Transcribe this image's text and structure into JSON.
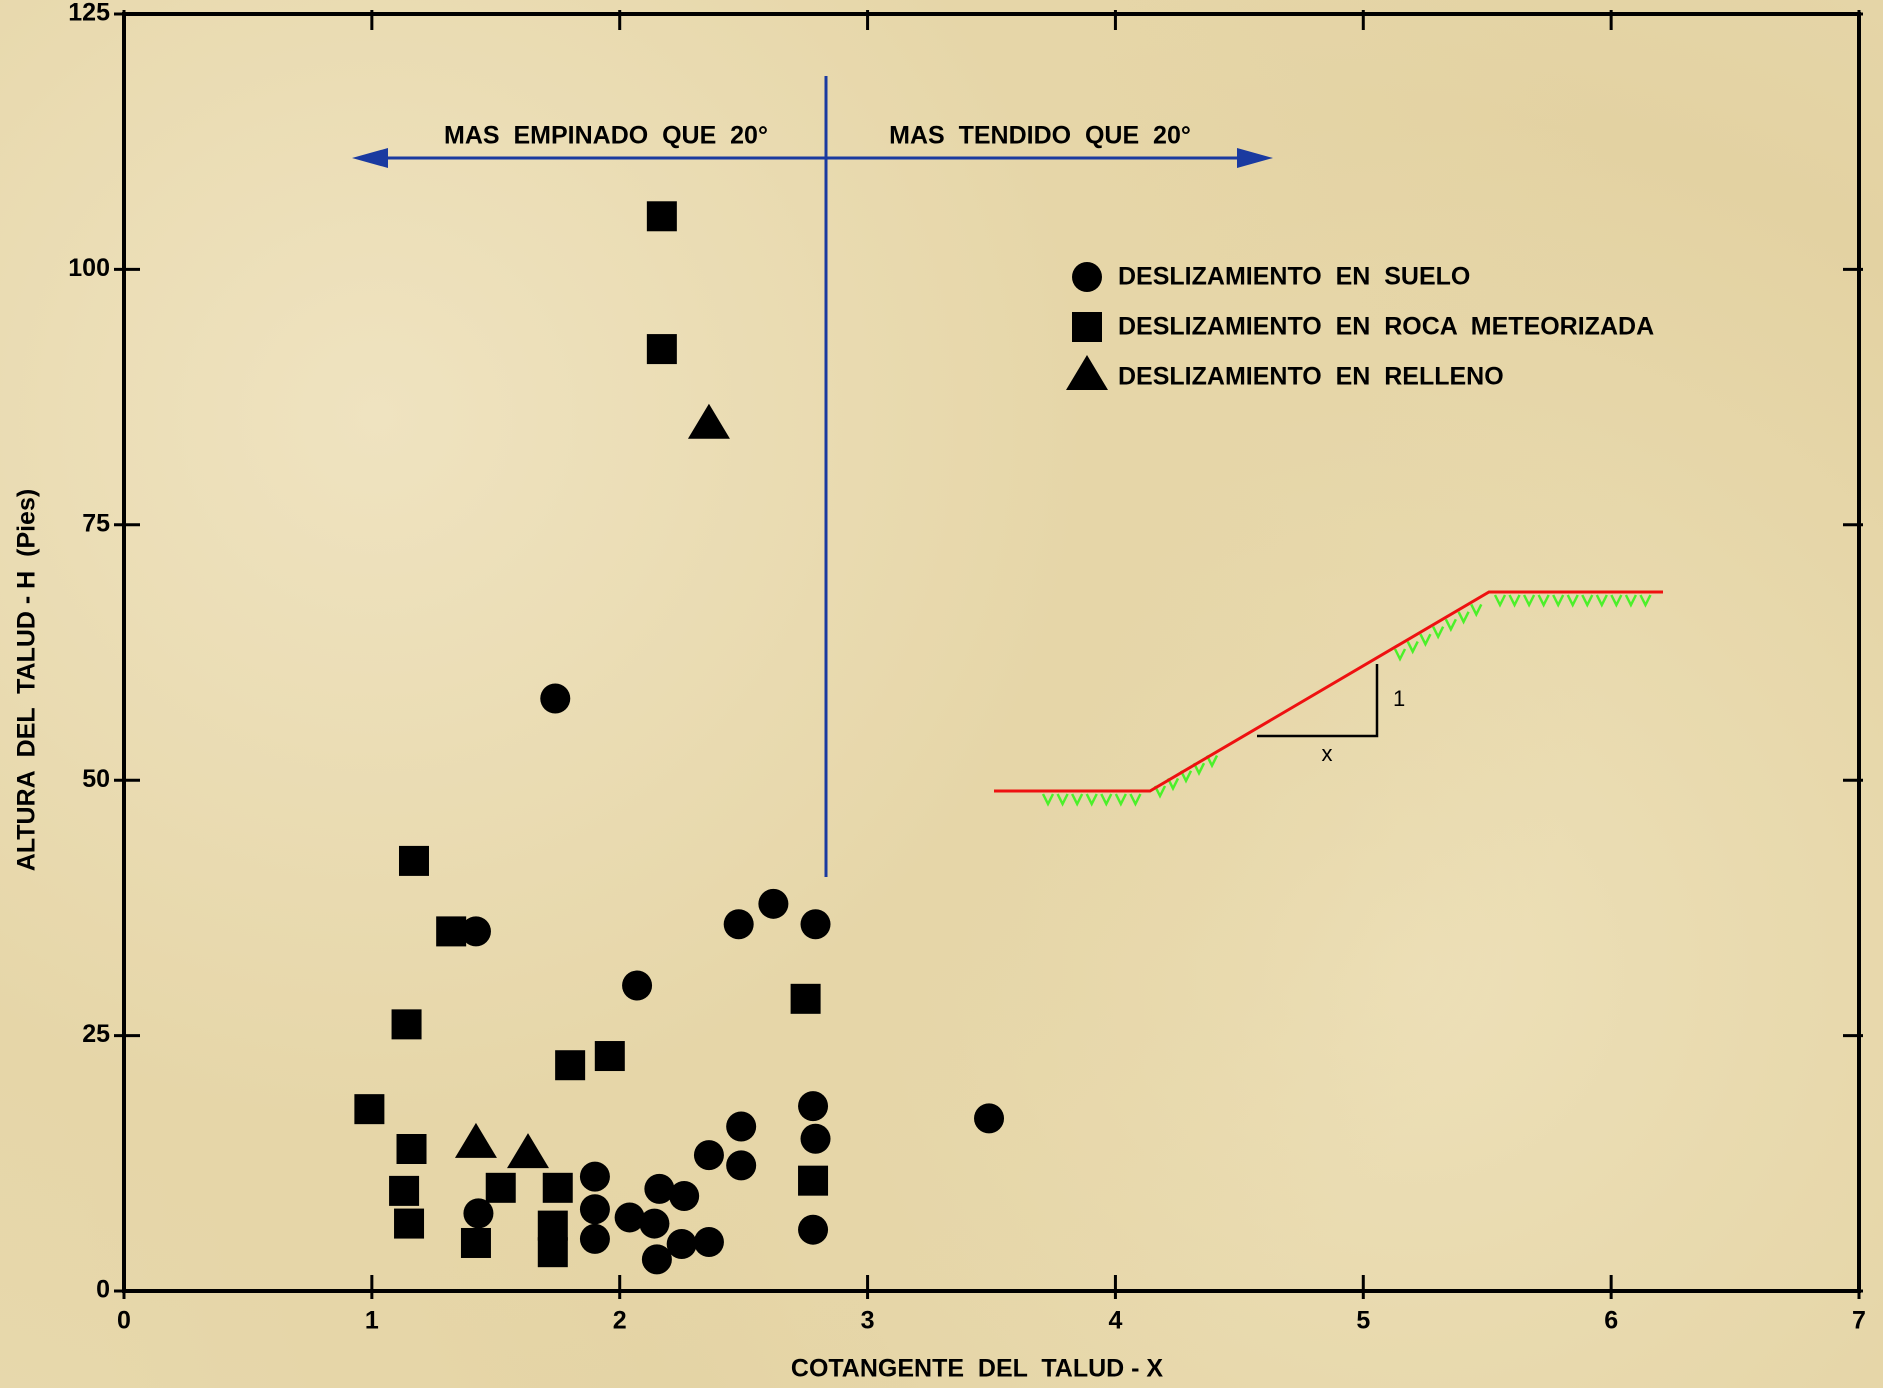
{
  "chart_data": {
    "type": "scatter",
    "xlabel": "COTANGENTE  DEL  TALUD - X",
    "ylabel": "ALTURA  DEL  TALUD - H  (Pies)",
    "xlim": [
      0,
      7
    ],
    "xticks": [
      0,
      1,
      2,
      3,
      4,
      5,
      6,
      7
    ],
    "ylim": [
      0,
      125
    ],
    "yticks": [
      0,
      25,
      50,
      75,
      100,
      125
    ],
    "grid": false,
    "annotations": [
      "MAS  EMPINADO  QUE  20°",
      "MAS  TENDIDO  QUE  20°",
      "1",
      "x"
    ],
    "series": [
      {
        "name": "DESLIZAMIENTO  EN  SUELO",
        "marker": "circle",
        "color": "#000000",
        "x": [
          1.74,
          1.42,
          2.07,
          2.48,
          2.62,
          2.79,
          2.78,
          2.79,
          2.78,
          3.49,
          2.49,
          2.49,
          2.36,
          2.26,
          2.16,
          2.14,
          2.25,
          2.36,
          2.15,
          2.04,
          1.9,
          1.9,
          1.9,
          1.43
        ],
        "values": [
          58,
          35.2,
          29.9,
          35.9,
          37.9,
          35.9,
          18.1,
          14.9,
          6,
          16.9,
          16.1,
          12.3,
          13.3,
          9.3,
          10,
          6.6,
          4.6,
          4.8,
          3.1,
          7.2,
          11.2,
          8,
          5.1,
          7.6
        ]
      },
      {
        "name": "DESLIZAMIENTO  EN  ROCA  METEORIZADA",
        "marker": "square",
        "color": "#000000",
        "x": [
          2.17,
          2.17,
          1.17,
          1.32,
          1.14,
          2.75,
          1.8,
          1.96,
          0.99,
          1.16,
          1.13,
          1.15,
          1.52,
          1.42,
          1.75,
          1.73,
          1.73,
          2.78
        ],
        "values": [
          105.2,
          92.2,
          42.1,
          35.2,
          26.1,
          28.6,
          22.1,
          23,
          17.8,
          13.9,
          9.8,
          6.6,
          10.1,
          4.7,
          10.1,
          6.4,
          3.8,
          10.8
        ]
      },
      {
        "name": "DESLIZAMIENTO  EN  RELLENO",
        "marker": "triangle",
        "color": "#000000",
        "x": [
          2.36,
          1.42,
          1.63
        ],
        "values": [
          84.7,
          14.3,
          13.3
        ]
      }
    ]
  }
}
